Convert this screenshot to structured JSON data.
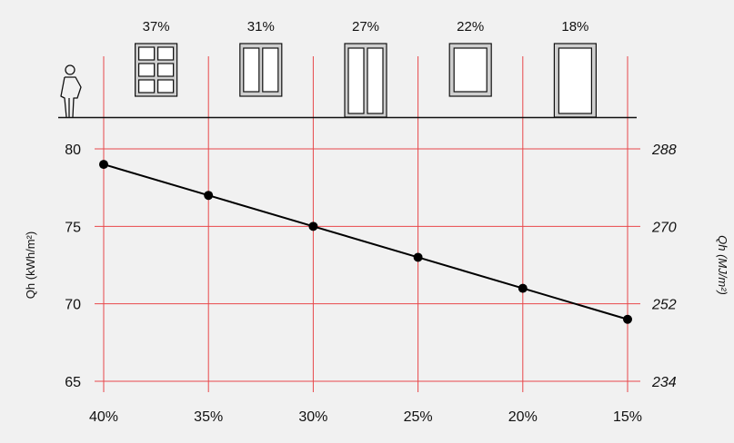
{
  "chart_data": {
    "type": "line",
    "x": [
      "40%",
      "35%",
      "30%",
      "25%",
      "20%",
      "15%"
    ],
    "series": [
      {
        "values": [
          79,
          77,
          75,
          73,
          71,
          69
        ]
      }
    ],
    "ylabel_left": "Qh (kWh/m²)",
    "ylabel_right": "Qh (MJ/m²)",
    "ylim": [
      65,
      80
    ],
    "yticks_left": [
      "80",
      "75",
      "70",
      "65"
    ],
    "yticks_right": [
      "288",
      "270",
      "252",
      "234"
    ],
    "grid": true,
    "window_percentages": [
      "37%",
      "31%",
      "27%",
      "22%",
      "18%"
    ],
    "colors": {
      "grid": "#e8474a",
      "line": "#000000",
      "background": "#f1f1f1",
      "window_frame": "#cfcfcf"
    }
  }
}
